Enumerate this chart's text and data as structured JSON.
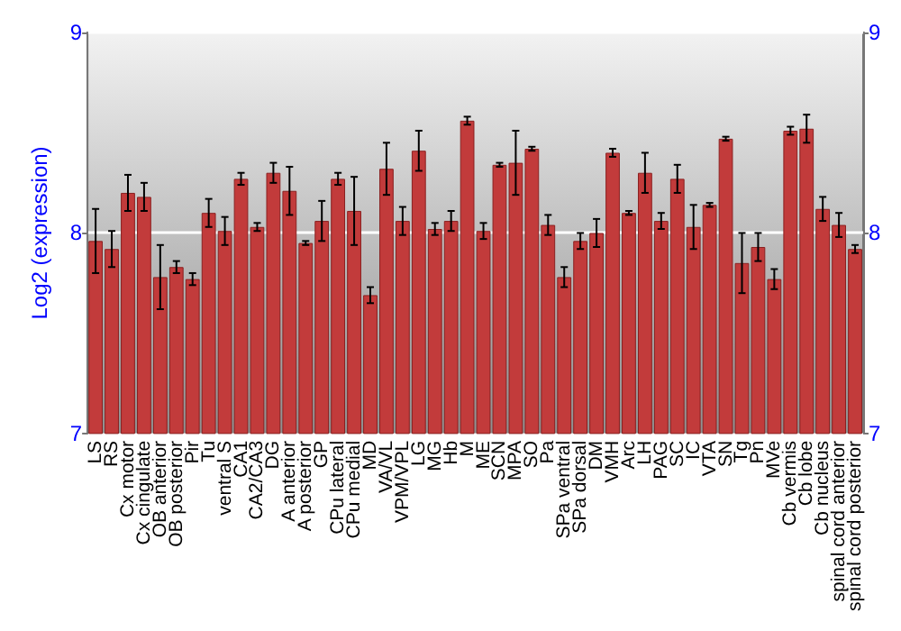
{
  "chart_data": {
    "type": "bar",
    "ylabel": "Log2 (expression)",
    "categories": [
      "LS",
      "RS",
      "Cx motor",
      "Cx cingulate",
      "OB anterior",
      "OB posterior",
      "Pir",
      "Tu",
      "ventral S",
      "CA1",
      "CA2/CA3",
      "DG",
      "A anterior",
      "A posterior",
      "GP",
      "CPu lateral",
      "CPu medial",
      "MD",
      "VA/VL",
      "VPM/VPL",
      "LG",
      "MG",
      "Hb",
      "M",
      "ME",
      "SCN",
      "MPA",
      "SO",
      "Pa",
      "SPa ventral",
      "SPa dorsal",
      "DM",
      "VMH",
      "Arc",
      "LH",
      "PAG",
      "SC",
      "IC",
      "VTA",
      "SN",
      "Tg",
      "Pn",
      "MVe",
      "Cb vermis",
      "Cb lobe",
      "Cb nucleus",
      "spinal cord anterior",
      "spinal cord posterior"
    ],
    "values": [
      7.96,
      7.92,
      8.2,
      8.18,
      7.78,
      7.83,
      7.77,
      8.1,
      8.01,
      8.27,
      8.03,
      8.3,
      8.21,
      7.95,
      8.06,
      8.27,
      8.11,
      7.69,
      8.32,
      8.06,
      8.41,
      8.02,
      8.06,
      8.56,
      8.01,
      8.34,
      8.35,
      8.42,
      8.04,
      7.78,
      7.96,
      8,
      8.4,
      8.1,
      8.3,
      8.06,
      8.27,
      8.03,
      8.14,
      8.47,
      7.85,
      7.93,
      7.77,
      8.51,
      8.52,
      8.12,
      8.04,
      7.92
    ],
    "errors": [
      0.16,
      0.09,
      0.09,
      0.07,
      0.16,
      0.03,
      0.03,
      0.07,
      0.07,
      0.03,
      0.02,
      0.05,
      0.12,
      0.01,
      0.1,
      0.03,
      0.17,
      0.04,
      0.13,
      0.07,
      0.1,
      0.03,
      0.05,
      0.02,
      0.04,
      0.01,
      0.16,
      0.01,
      0.05,
      0.05,
      0.04,
      0.07,
      0.02,
      0.01,
      0.1,
      0.04,
      0.07,
      0.11,
      0.01,
      0.01,
      0.15,
      0.07,
      0.05,
      0.02,
      0.07,
      0.06,
      0.06,
      0.02
    ],
    "color": "#c23b3b",
    "ylim": [
      7,
      9
    ],
    "yticks": [
      7,
      8,
      9
    ],
    "y2lim": [
      7,
      9
    ],
    "y2ticks": [
      7,
      8,
      9
    ],
    "grid": "y"
  }
}
